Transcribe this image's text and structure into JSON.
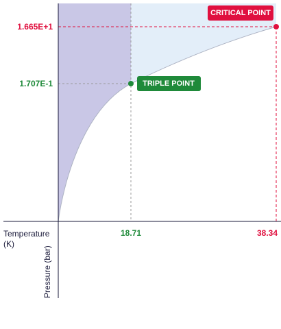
{
  "x_axis": {
    "label_line1": "Temperature",
    "label_line2": "(K)"
  },
  "y_axis": {
    "label": "Pressure (bar)"
  },
  "triple_point": {
    "label": "TRIPLE POINT",
    "temperature": "18.71",
    "pressure": "1.707E-1"
  },
  "critical_point": {
    "label": "CRITICAL POINT",
    "temperature": "38.34",
    "pressure": "1.665E+1"
  }
}
